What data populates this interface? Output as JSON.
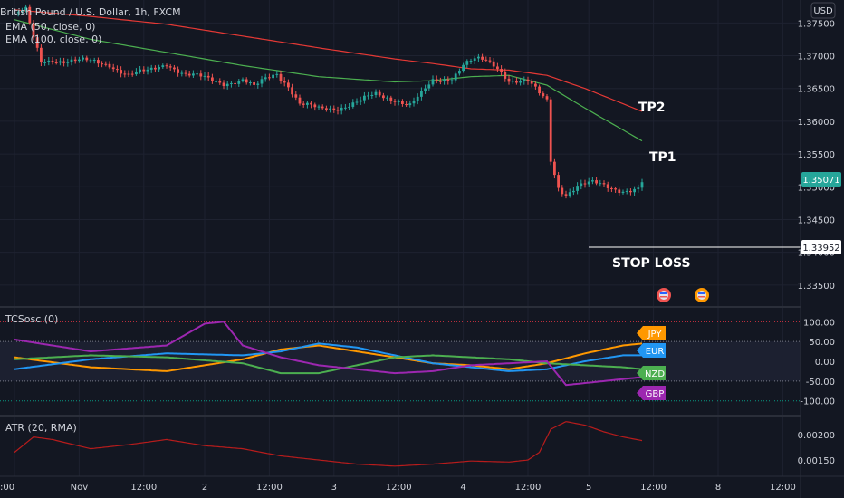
{
  "header": {
    "symbol_title": "British Pound / U.S. Dollar, 1h, FXCM",
    "ema50_label": "EMA (50, close, 0)",
    "ema100_label": "EMA (100, close, 0)",
    "currency_button": "USD"
  },
  "colors": {
    "background": "#131722",
    "grid": "#1e2230",
    "candle_up": "#26a69a",
    "candle_down": "#ef5350",
    "ema50": "#4caf50",
    "ema100": "#e53935",
    "atr_line": "#b71c1c",
    "text": "#d1d4dc",
    "price_tag": "#26a69a"
  },
  "annotations": {
    "tp2": "TP2",
    "tp1": "TP1",
    "stop_loss": "STOP LOSS",
    "stop_loss_price": "1.33952",
    "stop_loss_value": 1.33952,
    "current_price": "1.35071",
    "current_value": 1.35071
  },
  "chart_data": [
    {
      "type": "candlestick",
      "title": "British Pound / U.S. Dollar, 1h, FXCM",
      "x_ticks": [
        ":00",
        "Nov",
        "12:00",
        "2",
        "12:00",
        "3",
        "12:00",
        "4",
        "12:00",
        "5",
        "12:00",
        "8",
        "12:00"
      ],
      "y_ticks": [
        "1.37500",
        "1.37000",
        "1.36500",
        "1.36000",
        "1.35500",
        "1.35000",
        "1.34500",
        "1.34000",
        "1.33500"
      ],
      "ylim": [
        1.3318,
        1.3785
      ],
      "close_path": [
        [
          0,
          1.3765
        ],
        [
          3,
          1.3768
        ],
        [
          5,
          1.3725
        ],
        [
          7,
          1.369
        ],
        [
          10,
          1.3695
        ],
        [
          15,
          1.3692
        ],
        [
          20,
          1.369
        ],
        [
          25,
          1.3688
        ],
        [
          30,
          1.367
        ],
        [
          35,
          1.3675
        ],
        [
          40,
          1.369
        ],
        [
          45,
          1.367
        ],
        [
          50,
          1.3665
        ],
        [
          55,
          1.366
        ],
        [
          60,
          1.3662
        ],
        [
          63,
          1.365
        ],
        [
          66,
          1.3665
        ],
        [
          69,
          1.3675
        ],
        [
          72,
          1.3655
        ],
        [
          75,
          1.3625
        ],
        [
          80,
          1.3618
        ],
        [
          85,
          1.3622
        ],
        [
          90,
          1.3628
        ],
        [
          95,
          1.364
        ],
        [
          100,
          1.3635
        ],
        [
          104,
          1.3625
        ],
        [
          107,
          1.364
        ],
        [
          110,
          1.366
        ],
        [
          115,
          1.3668
        ],
        [
          118,
          1.3688
        ],
        [
          121,
          1.3693
        ],
        [
          124,
          1.369
        ],
        [
          127,
          1.3682
        ],
        [
          130,
          1.3665
        ],
        [
          135,
          1.366
        ],
        [
          138,
          1.364
        ],
        [
          140,
          1.363
        ],
        [
          141,
          1.354
        ],
        [
          143,
          1.35
        ],
        [
          145,
          1.349
        ],
        [
          148,
          1.3502
        ],
        [
          152,
          1.3504
        ],
        [
          156,
          1.35
        ],
        [
          160,
          1.3496
        ],
        [
          164,
          1.3496
        ],
        [
          165,
          1.3507
        ]
      ],
      "ema50": [
        [
          0,
          1.3755
        ],
        [
          20,
          1.3725
        ],
        [
          40,
          1.3705
        ],
        [
          60,
          1.3685
        ],
        [
          80,
          1.3668
        ],
        [
          100,
          1.366
        ],
        [
          110,
          1.3662
        ],
        [
          120,
          1.3668
        ],
        [
          130,
          1.367
        ],
        [
          140,
          1.3655
        ],
        [
          150,
          1.362
        ],
        [
          165,
          1.357
        ]
      ],
      "ema100": [
        [
          0,
          1.377
        ],
        [
          20,
          1.376
        ],
        [
          40,
          1.3748
        ],
        [
          60,
          1.373
        ],
        [
          80,
          1.3712
        ],
        [
          100,
          1.3695
        ],
        [
          110,
          1.3688
        ],
        [
          120,
          1.368
        ],
        [
          130,
          1.3678
        ],
        [
          140,
          1.367
        ],
        [
          150,
          1.365
        ],
        [
          165,
          1.3615
        ]
      ]
    },
    {
      "type": "line",
      "title": "TCSosc (0)",
      "y_ticks": [
        "100.00",
        "50.00",
        "0.00",
        "-50.00",
        "-100.00"
      ],
      "ylim": [
        -135,
        135
      ],
      "levels": [
        100,
        50,
        -50,
        -100
      ],
      "series": [
        {
          "name": "JPY",
          "color": "#ff9800",
          "values": [
            [
              0,
              10
            ],
            [
              20,
              -15
            ],
            [
              40,
              -25
            ],
            [
              60,
              5
            ],
            [
              70,
              30
            ],
            [
              80,
              40
            ],
            [
              90,
              25
            ],
            [
              100,
              10
            ],
            [
              110,
              -5
            ],
            [
              120,
              -10
            ],
            [
              130,
              -20
            ],
            [
              140,
              -5
            ],
            [
              150,
              20
            ],
            [
              160,
              40
            ],
            [
              165,
              45
            ]
          ]
        },
        {
          "name": "EUR",
          "color": "#2196f3",
          "values": [
            [
              0,
              -20
            ],
            [
              20,
              5
            ],
            [
              40,
              20
            ],
            [
              60,
              15
            ],
            [
              70,
              25
            ],
            [
              80,
              45
            ],
            [
              90,
              35
            ],
            [
              100,
              15
            ],
            [
              110,
              -5
            ],
            [
              120,
              -15
            ],
            [
              130,
              -25
            ],
            [
              140,
              -20
            ],
            [
              150,
              0
            ],
            [
              160,
              15
            ],
            [
              165,
              15
            ]
          ]
        },
        {
          "name": "NZD",
          "color": "#4caf50",
          "values": [
            [
              0,
              5
            ],
            [
              20,
              15
            ],
            [
              40,
              10
            ],
            [
              60,
              -5
            ],
            [
              70,
              -30
            ],
            [
              80,
              -30
            ],
            [
              90,
              -10
            ],
            [
              100,
              10
            ],
            [
              110,
              15
            ],
            [
              120,
              10
            ],
            [
              130,
              5
            ],
            [
              140,
              -5
            ],
            [
              150,
              -10
            ],
            [
              160,
              -15
            ],
            [
              165,
              -20
            ]
          ]
        },
        {
          "name": "GBP",
          "color": "#9c27b0",
          "values": [
            [
              0,
              55
            ],
            [
              20,
              25
            ],
            [
              40,
              40
            ],
            [
              50,
              95
            ],
            [
              55,
              100
            ],
            [
              60,
              40
            ],
            [
              70,
              10
            ],
            [
              80,
              -10
            ],
            [
              90,
              -20
            ],
            [
              100,
              -30
            ],
            [
              110,
              -25
            ],
            [
              120,
              -10
            ],
            [
              130,
              -5
            ],
            [
              140,
              0
            ],
            [
              145,
              -60
            ],
            [
              150,
              -55
            ],
            [
              160,
              -45
            ],
            [
              165,
              -40
            ]
          ]
        }
      ]
    },
    {
      "type": "line",
      "title": "ATR (20, RMA)",
      "y_ticks": [
        "0.00200",
        "0.00150"
      ],
      "ylim": [
        0.0012,
        0.00235
      ],
      "series": [
        {
          "name": "ATR (20, RMA)",
          "values": [
            [
              0,
              0.00165
            ],
            [
              5,
              0.00195
            ],
            [
              10,
              0.0019
            ],
            [
              20,
              0.00172
            ],
            [
              30,
              0.0018
            ],
            [
              40,
              0.0019
            ],
            [
              50,
              0.00178
            ],
            [
              60,
              0.00172
            ],
            [
              70,
              0.00158
            ],
            [
              80,
              0.0015
            ],
            [
              90,
              0.00142
            ],
            [
              100,
              0.00138
            ],
            [
              110,
              0.00142
            ],
            [
              120,
              0.00148
            ],
            [
              130,
              0.00146
            ],
            [
              135,
              0.0015
            ],
            [
              138,
              0.00165
            ],
            [
              141,
              0.0021
            ],
            [
              145,
              0.00225
            ],
            [
              150,
              0.00218
            ],
            [
              155,
              0.00205
            ],
            [
              160,
              0.00195
            ],
            [
              165,
              0.00188
            ]
          ]
        }
      ]
    }
  ]
}
